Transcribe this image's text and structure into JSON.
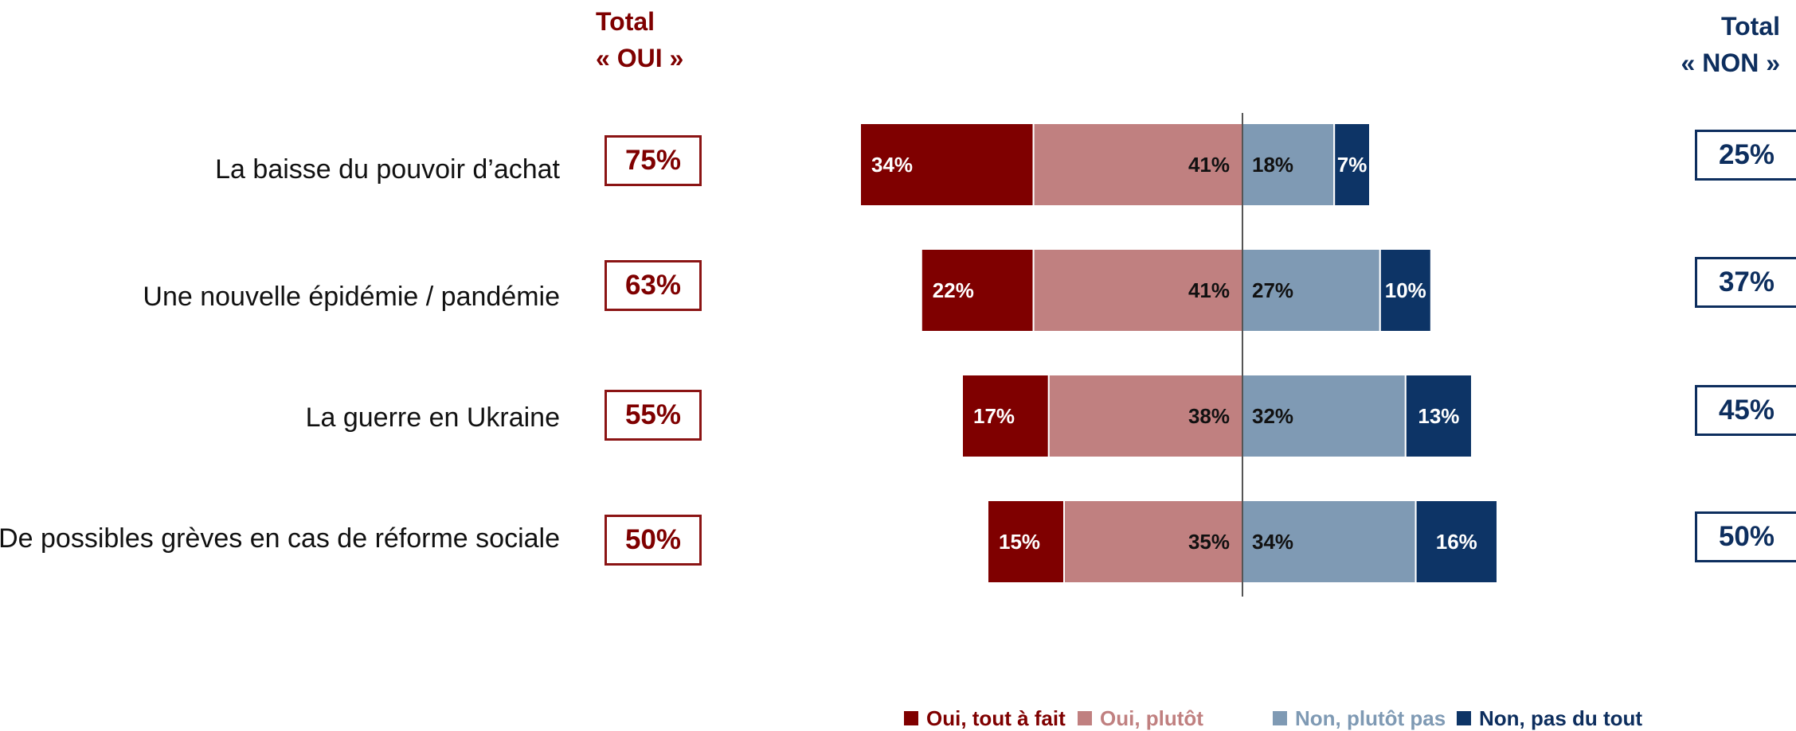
{
  "headers": {
    "oui_line1": "Total",
    "oui_line2": "« OUI »",
    "non_line1": "Total",
    "non_line2": "« NON »"
  },
  "rows": [
    {
      "label": "La baisse du pouvoir d’achat",
      "total_oui": "75%",
      "total_non": "25%"
    },
    {
      "label": "Une nouvelle épidémie / pandémie",
      "total_oui": "63%",
      "total_non": "37%"
    },
    {
      "label": "La guerre en Ukraine",
      "total_oui": "55%",
      "total_non": "45%"
    },
    {
      "label": "De possibles grèves en cas de réforme sociale",
      "total_oui": "50%",
      "total_non": "50%"
    }
  ],
  "legend": [
    {
      "label": "Oui, tout à fait",
      "color": "#7f0000"
    },
    {
      "label": "Oui, plutôt",
      "color": "#c08080"
    },
    {
      "label": "Non, plutôt pas",
      "color": "#7f9ab4"
    },
    {
      "label": "Non, pas du tout",
      "color": "#0d3466"
    }
  ],
  "chart_data": {
    "type": "bar",
    "orientation": "horizontal-diverging",
    "categories": [
      "La baisse du pouvoir d’achat",
      "Une nouvelle épidémie / pandémie",
      "La guerre en Ukraine",
      "De possibles grèves en cas de réforme sociale"
    ],
    "series": [
      {
        "name": "Oui, tout à fait",
        "side": "left",
        "color": "#7f0000",
        "values": [
          34,
          22,
          17,
          15
        ],
        "labels": [
          "34%",
          "22%",
          "17%",
          "15%"
        ]
      },
      {
        "name": "Oui, plutôt",
        "side": "left",
        "color": "#c08080",
        "values": [
          41,
          41,
          38,
          35
        ],
        "labels": [
          "41%",
          "41%",
          "38%",
          "35%"
        ]
      },
      {
        "name": "Non, plutôt pas",
        "side": "right",
        "color": "#7f9ab4",
        "values": [
          18,
          27,
          32,
          34
        ],
        "labels": [
          "18%",
          "27%",
          "32%",
          "34%"
        ]
      },
      {
        "name": "Non, pas du tout",
        "side": "right",
        "color": "#0d3466",
        "values": [
          7,
          10,
          13,
          16
        ],
        "labels": [
          "7%",
          "10%",
          "13%",
          "16%"
        ]
      }
    ],
    "totals_oui": [
      75,
      63,
      55,
      50
    ],
    "totals_non": [
      25,
      37,
      45,
      50
    ],
    "grid": false,
    "legend_position": "bottom"
  }
}
